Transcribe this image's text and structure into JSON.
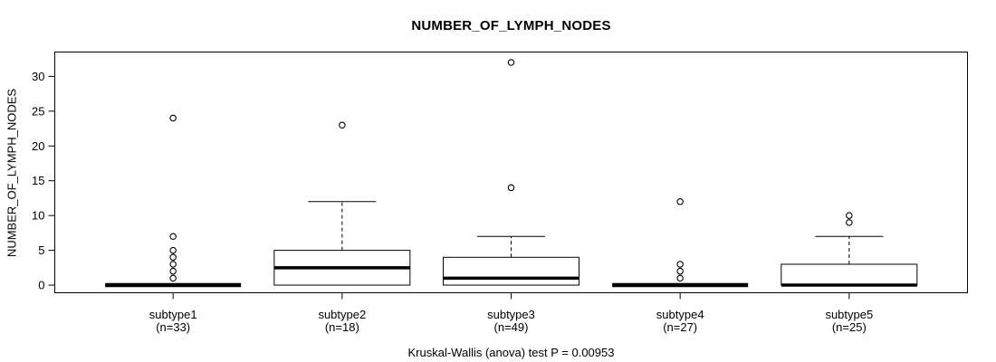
{
  "chart_data": {
    "type": "box",
    "title": "NUMBER_OF_LYMPH_NODES",
    "ylabel": "NUMBER_OF_LYMPH_NODES",
    "xlabel": "",
    "caption": "Kruskal-Wallis (anova) test P = 0.00953",
    "y_ticks": [
      0,
      5,
      10,
      15,
      20,
      25,
      30
    ],
    "ylim": [
      -1.1,
      33.5
    ],
    "grid": false,
    "legend": "none",
    "colors": {
      "stroke": "#000000",
      "box_fill": "#ffffff",
      "background": "#ffffff"
    },
    "groups": [
      {
        "label": "subtype1",
        "sublabel": "(n=33)",
        "n": 33,
        "q1": 0,
        "median": 0,
        "q3": 0,
        "whisker_low": 0,
        "whisker_high": 0,
        "outliers": [
          1,
          2,
          3,
          4,
          5,
          7,
          24
        ]
      },
      {
        "label": "subtype2",
        "sublabel": "(n=18)",
        "n": 18,
        "q1": 0,
        "median": 2.5,
        "q3": 5,
        "whisker_low": 0,
        "whisker_high": 12,
        "outliers": [
          23
        ]
      },
      {
        "label": "subtype3",
        "sublabel": "(n=49)",
        "n": 49,
        "q1": 0,
        "median": 1,
        "q3": 4,
        "whisker_low": 0,
        "whisker_high": 7,
        "outliers": [
          14,
          32
        ]
      },
      {
        "label": "subtype4",
        "sublabel": "(n=27)",
        "n": 27,
        "q1": 0,
        "median": 0,
        "q3": 0,
        "whisker_low": 0,
        "whisker_high": 0,
        "outliers": [
          1,
          2,
          3,
          12
        ]
      },
      {
        "label": "subtype5",
        "sublabel": "(n=25)",
        "n": 25,
        "q1": 0,
        "median": 0,
        "q3": 3,
        "whisker_low": 0,
        "whisker_high": 7,
        "outliers": [
          9,
          10
        ]
      }
    ]
  }
}
